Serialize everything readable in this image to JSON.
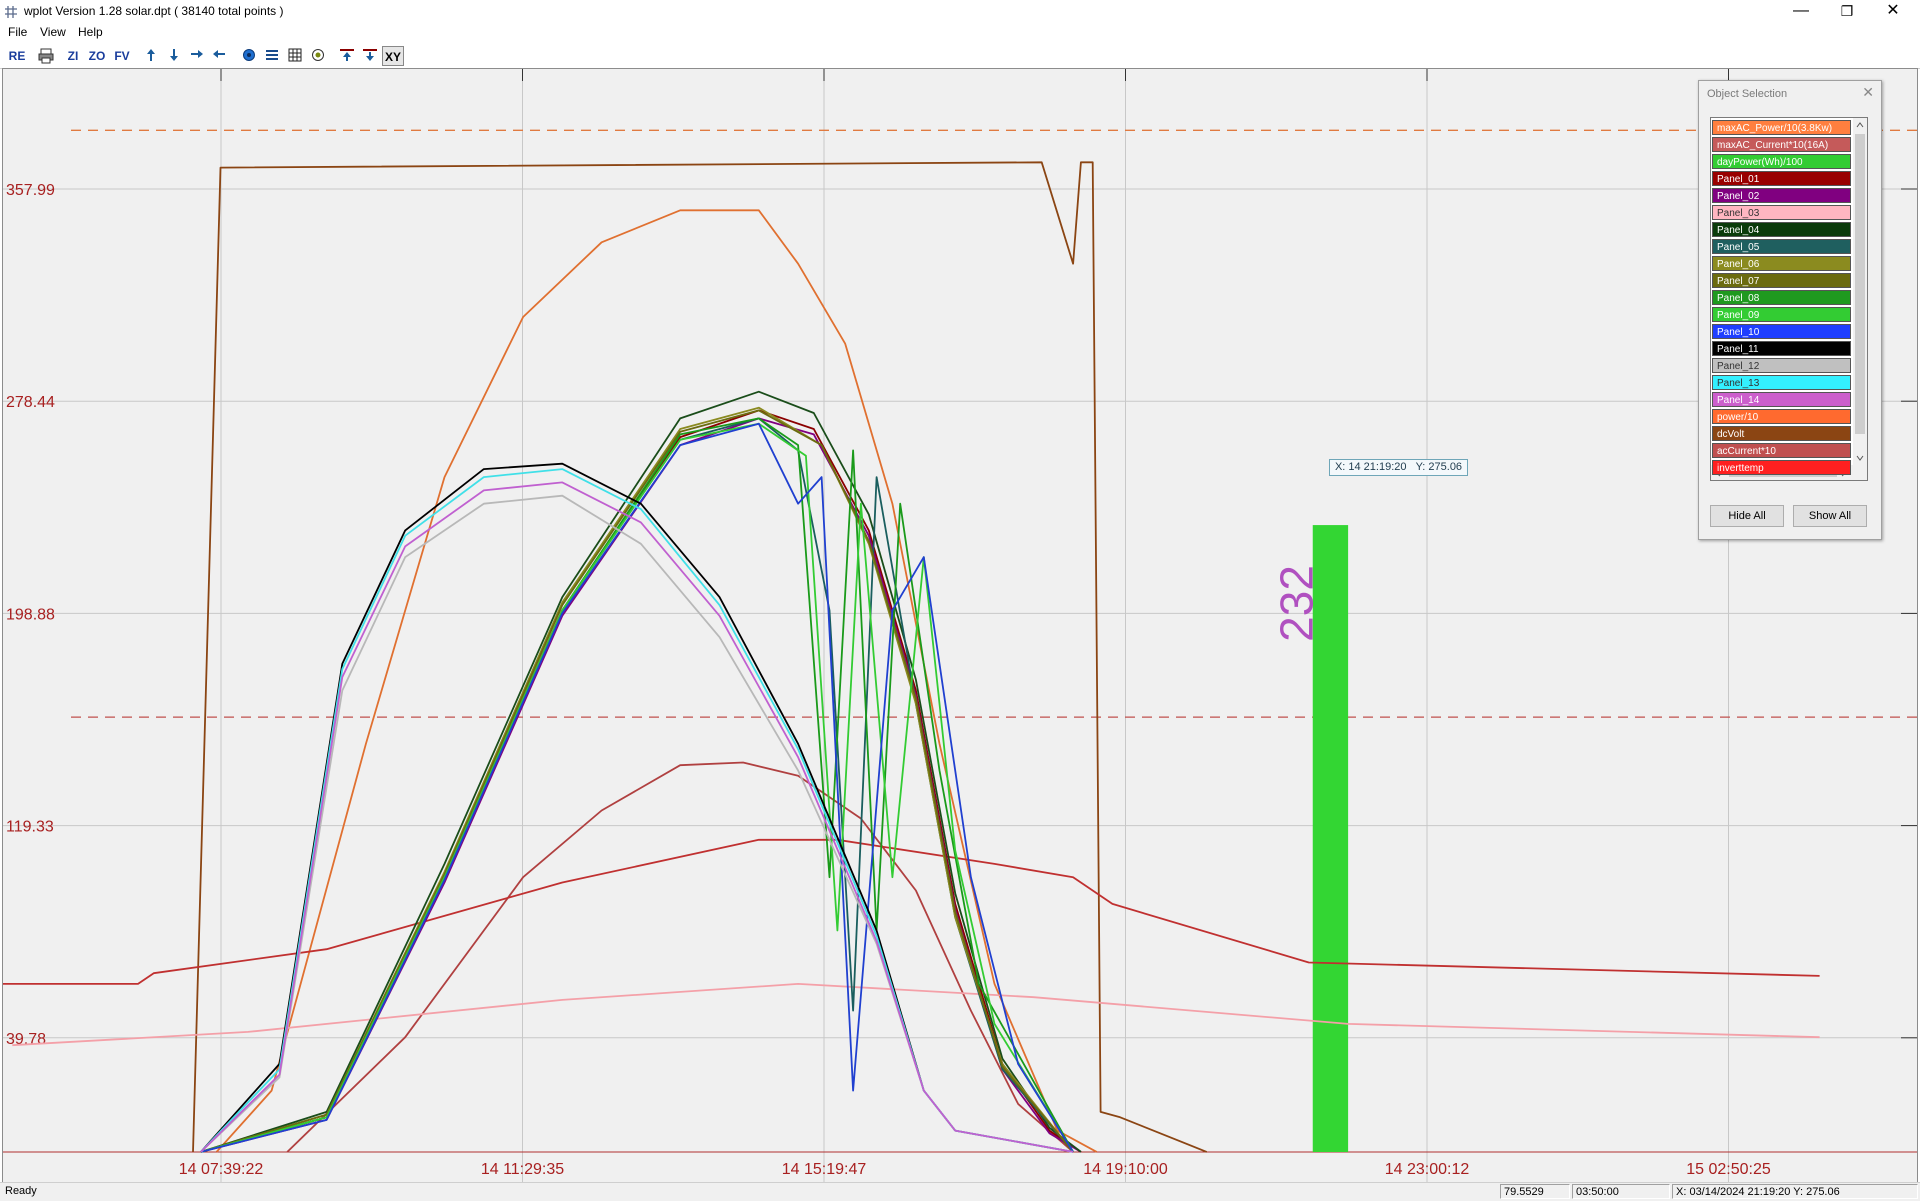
{
  "window": {
    "title": "wplot  Version 1.28  solar.dpt  ( 38140 total points )",
    "controls": {
      "minimize": "—",
      "restore": "❐",
      "close": "✕"
    }
  },
  "menu": [
    "File",
    "View",
    "Help"
  ],
  "toolbar": {
    "buttons": [
      {
        "label": "RE"
      },
      {
        "label": ""
      },
      {
        "label": "ZI"
      },
      {
        "label": "ZO"
      },
      {
        "label": "FV"
      },
      {
        "label": ""
      },
      {
        "label": ""
      },
      {
        "label": ""
      },
      {
        "label": ""
      },
      {
        "label": ""
      },
      {
        "label": ""
      },
      {
        "label": ""
      },
      {
        "label": ""
      },
      {
        "label": ""
      },
      {
        "label": ""
      },
      {
        "label": "XY"
      }
    ],
    "icons": [
      "print-icon",
      "arrow-up-icon",
      "arrow-down-icon",
      "arrow-right-icon",
      "arrow-left-icon",
      "circle-icon",
      "lines-icon",
      "grid-icon",
      "target-icon",
      "top-line-icon",
      "bottom-line-icon"
    ]
  },
  "chart_data": {
    "type": "line",
    "y_tick_labels": [
      "357.99",
      "278.44",
      "198.88",
      "119.33",
      "39.78"
    ],
    "x_tick_labels": [
      "14 07:39:22",
      "14 11:29:35",
      "14 15:19:47",
      "14 19:10:00",
      "14 23:00:12",
      "15 02:50:25"
    ],
    "ylim": [
      -3,
      397
    ],
    "grid": true,
    "reference_lines": [
      {
        "name": "maxAC_Power/10(3.8Kw)",
        "y": 380,
        "color": "#e07a40"
      },
      {
        "name": "maxAC_Current*10(16A)",
        "y": 160,
        "color": "#c0504d"
      }
    ],
    "series": [
      {
        "name": "dcVolt",
        "color": "#8b4513",
        "points": [
          [
            7.3,
            -3
          ],
          [
            7.65,
            366
          ],
          [
            18.1,
            368
          ],
          [
            18.5,
            330
          ],
          [
            18.6,
            368
          ],
          [
            18.75,
            368
          ],
          [
            18.85,
            12
          ],
          [
            19.1,
            10
          ],
          [
            20.2,
            -3
          ]
        ]
      },
      {
        "name": "power/10",
        "color": "#e07030",
        "points": [
          [
            7.6,
            -3
          ],
          [
            8.3,
            20
          ],
          [
            9.5,
            150
          ],
          [
            10.5,
            250
          ],
          [
            11.5,
            310
          ],
          [
            12.5,
            338
          ],
          [
            13.5,
            350
          ],
          [
            14.5,
            350
          ],
          [
            15.0,
            330
          ],
          [
            15.6,
            300
          ],
          [
            16.2,
            240
          ],
          [
            16.8,
            150
          ],
          [
            17.5,
            60
          ],
          [
            18.3,
            5
          ],
          [
            18.8,
            -3
          ]
        ]
      },
      {
        "name": "acCurrent*10",
        "color": "#b04040",
        "points": [
          [
            8.5,
            -3
          ],
          [
            10.0,
            40
          ],
          [
            11.5,
            100
          ],
          [
            12.5,
            125
          ],
          [
            13.5,
            142
          ],
          [
            14.3,
            143
          ],
          [
            15.0,
            138
          ],
          [
            15.8,
            122
          ],
          [
            16.5,
            95
          ],
          [
            17.2,
            50
          ],
          [
            17.8,
            15
          ],
          [
            18.5,
            -3
          ]
        ]
      },
      {
        "name": "inverttemp",
        "color": "#c03030",
        "points": [
          [
            4.2,
            60
          ],
          [
            6.6,
            60
          ],
          [
            6.8,
            64
          ],
          [
            9.0,
            73
          ],
          [
            12.0,
            98
          ],
          [
            14.5,
            114
          ],
          [
            15.5,
            114
          ],
          [
            17.5,
            105
          ],
          [
            18.5,
            100
          ],
          [
            19.0,
            90
          ],
          [
            21.5,
            68
          ],
          [
            28.0,
            63
          ]
        ]
      },
      {
        "name": "Panel_03",
        "color": "#f4a0a8",
        "points": [
          [
            5.0,
            37
          ],
          [
            8.0,
            42
          ],
          [
            12.0,
            54
          ],
          [
            15.0,
            60
          ],
          [
            18.0,
            55
          ],
          [
            22.0,
            45
          ],
          [
            28.0,
            40
          ]
        ]
      },
      {
        "name": "Panel_01",
        "color": "#8b0000",
        "points": [
          [
            7.4,
            -3
          ],
          [
            9.0,
            10
          ],
          [
            10.5,
            100
          ],
          [
            12.0,
            200
          ],
          [
            13.5,
            265
          ],
          [
            14.5,
            275
          ],
          [
            15.2,
            268
          ],
          [
            15.9,
            230
          ],
          [
            16.5,
            170
          ],
          [
            17.0,
            90
          ],
          [
            17.6,
            30
          ],
          [
            18.2,
            5
          ],
          [
            18.6,
            -3
          ]
        ]
      },
      {
        "name": "Panel_02",
        "color": "#800080",
        "points": [
          [
            7.4,
            -3
          ],
          [
            9.0,
            9
          ],
          [
            10.5,
            98
          ],
          [
            12.0,
            198
          ],
          [
            13.5,
            262
          ],
          [
            14.5,
            272
          ],
          [
            15.2,
            266
          ],
          [
            15.9,
            228
          ],
          [
            16.5,
            168
          ],
          [
            17.0,
            88
          ],
          [
            17.6,
            28
          ],
          [
            18.2,
            4
          ],
          [
            18.6,
            -3
          ]
        ]
      },
      {
        "name": "Panel_04",
        "color": "#1a4d1a",
        "points": [
          [
            7.4,
            -3
          ],
          [
            9.0,
            12
          ],
          [
            10.5,
            105
          ],
          [
            12.0,
            205
          ],
          [
            13.5,
            272
          ],
          [
            14.5,
            282
          ],
          [
            15.2,
            274
          ],
          [
            15.9,
            236
          ],
          [
            16.5,
            174
          ],
          [
            17.0,
            94
          ],
          [
            17.6,
            32
          ],
          [
            18.2,
            6
          ],
          [
            18.6,
            -3
          ]
        ]
      },
      {
        "name": "Panel_05",
        "color": "#1a5e5e",
        "points": [
          [
            7.4,
            -3
          ],
          [
            9.0,
            10
          ],
          [
            10.5,
            100
          ],
          [
            12.0,
            200
          ],
          [
            13.5,
            264
          ],
          [
            14.5,
            272
          ],
          [
            15.0,
            260
          ],
          [
            15.4,
            200
          ],
          [
            15.7,
            50
          ],
          [
            16.0,
            250
          ],
          [
            16.5,
            165
          ],
          [
            17.0,
            85
          ],
          [
            17.6,
            28
          ],
          [
            18.5,
            -3
          ]
        ]
      },
      {
        "name": "Panel_06",
        "color": "#8a8a20",
        "points": [
          [
            7.4,
            -3
          ],
          [
            9.0,
            11
          ],
          [
            10.5,
            102
          ],
          [
            12.0,
            203
          ],
          [
            13.5,
            268
          ],
          [
            14.5,
            276
          ],
          [
            15.3,
            262
          ],
          [
            15.9,
            225
          ],
          [
            16.5,
            165
          ],
          [
            17.0,
            85
          ],
          [
            17.6,
            30
          ],
          [
            18.5,
            -3
          ]
        ]
      },
      {
        "name": "Panel_07",
        "color": "#6b6b10",
        "points": [
          [
            7.4,
            -3
          ],
          [
            9.0,
            11
          ],
          [
            10.5,
            101
          ],
          [
            12.0,
            202
          ],
          [
            13.5,
            267
          ],
          [
            14.5,
            275
          ],
          [
            15.3,
            262
          ],
          [
            15.9,
            226
          ],
          [
            16.5,
            167
          ],
          [
            17.0,
            87
          ],
          [
            17.6,
            29
          ],
          [
            18.5,
            -3
          ]
        ]
      },
      {
        "name": "Panel_08",
        "color": "#1a9a1a",
        "points": [
          [
            7.4,
            -3
          ],
          [
            9.0,
            10
          ],
          [
            10.5,
            100
          ],
          [
            12.0,
            200
          ],
          [
            13.5,
            266
          ],
          [
            14.5,
            272
          ],
          [
            15.0,
            262
          ],
          [
            15.4,
            100
          ],
          [
            15.7,
            260
          ],
          [
            16.0,
            80
          ],
          [
            16.3,
            240
          ],
          [
            16.8,
            140
          ],
          [
            17.3,
            60
          ],
          [
            18.5,
            -3
          ]
        ]
      },
      {
        "name": "Panel_09",
        "color": "#33cc33",
        "points": [
          [
            7.4,
            -3
          ],
          [
            9.0,
            10
          ],
          [
            10.5,
            100
          ],
          [
            12.0,
            200
          ],
          [
            13.5,
            264
          ],
          [
            14.5,
            270
          ],
          [
            15.1,
            258
          ],
          [
            15.5,
            80
          ],
          [
            15.8,
            240
          ],
          [
            16.2,
            100
          ],
          [
            16.6,
            220
          ],
          [
            17.0,
            110
          ],
          [
            17.5,
            45
          ],
          [
            18.5,
            -3
          ]
        ]
      },
      {
        "name": "Panel_10",
        "color": "#2040d0",
        "points": [
          [
            7.4,
            -3
          ],
          [
            9.0,
            9
          ],
          [
            10.5,
            99
          ],
          [
            12.0,
            199
          ],
          [
            13.5,
            262
          ],
          [
            14.5,
            270
          ],
          [
            15.0,
            240
          ],
          [
            15.3,
            250
          ],
          [
            15.7,
            20
          ],
          [
            16.2,
            200
          ],
          [
            16.6,
            220
          ],
          [
            17.2,
            100
          ],
          [
            17.8,
            30
          ],
          [
            18.5,
            -3
          ]
        ]
      },
      {
        "name": "Panel_11",
        "color": "#000000",
        "points": [
          [
            7.4,
            -3
          ],
          [
            8.4,
            30
          ],
          [
            9.2,
            180
          ],
          [
            10.0,
            230
          ],
          [
            11.0,
            253
          ],
          [
            12.0,
            255
          ],
          [
            13.0,
            240
          ],
          [
            14.0,
            205
          ],
          [
            15.0,
            150
          ],
          [
            16.0,
            80
          ],
          [
            16.6,
            20
          ],
          [
            17.0,
            5
          ],
          [
            18.5,
            -3
          ]
        ]
      },
      {
        "name": "Panel_12",
        "color": "#b8b8b8",
        "points": [
          [
            7.4,
            -3
          ],
          [
            8.4,
            25
          ],
          [
            9.2,
            170
          ],
          [
            10.0,
            220
          ],
          [
            11.0,
            240
          ],
          [
            12.0,
            243
          ],
          [
            13.0,
            225
          ],
          [
            14.0,
            190
          ],
          [
            15.0,
            140
          ],
          [
            16.0,
            75
          ],
          [
            16.6,
            20
          ],
          [
            17.0,
            5
          ],
          [
            18.5,
            -3
          ]
        ]
      },
      {
        "name": "Panel_13",
        "color": "#40e0e8",
        "points": [
          [
            7.4,
            -3
          ],
          [
            8.4,
            28
          ],
          [
            9.2,
            178
          ],
          [
            10.0,
            228
          ],
          [
            11.0,
            250
          ],
          [
            12.0,
            253
          ],
          [
            13.0,
            238
          ],
          [
            14.0,
            202
          ],
          [
            15.0,
            148
          ],
          [
            16.0,
            78
          ],
          [
            16.6,
            20
          ],
          [
            17.0,
            5
          ],
          [
            18.5,
            -3
          ]
        ]
      },
      {
        "name": "Panel_14",
        "color": "#c060d0",
        "points": [
          [
            7.4,
            -3
          ],
          [
            8.4,
            26
          ],
          [
            9.2,
            175
          ],
          [
            10.0,
            224
          ],
          [
            11.0,
            245
          ],
          [
            12.0,
            248
          ],
          [
            13.0,
            233
          ],
          [
            14.0,
            198
          ],
          [
            15.0,
            145
          ],
          [
            16.0,
            76
          ],
          [
            16.6,
            20
          ],
          [
            17.0,
            5
          ],
          [
            18.5,
            -3
          ]
        ]
      }
    ],
    "bar": {
      "label": "232",
      "value": 232,
      "x_range": [
        21.55,
        22.0
      ],
      "color": "#33d633"
    }
  },
  "cursor_readout": {
    "x": "X: 14 21:19:20",
    "y": "Y: 275.06"
  },
  "object_selection": {
    "title": "Object Selection",
    "items": [
      {
        "label": "maxAC_Power/10(3.8Kw)",
        "color": "#ff7f3f",
        "text": "#ffffff"
      },
      {
        "label": "maxAC_Current*10(16A)",
        "color": "#c55a5a",
        "text": "#ffffff"
      },
      {
        "label": "dayPower(Wh)/100",
        "color": "#33cc33",
        "text": "#ffffff"
      },
      {
        "label": "Panel_01",
        "color": "#990000",
        "text": "#ffffff"
      },
      {
        "label": "Panel_02",
        "color": "#800080",
        "text": "#ffffff"
      },
      {
        "label": "Panel_03",
        "color": "#ffb6c1",
        "text": "#333333"
      },
      {
        "label": "Panel_04",
        "color": "#0b3b0b",
        "text": "#ffffff"
      },
      {
        "label": "Panel_05",
        "color": "#1f5f5f",
        "text": "#ffffff"
      },
      {
        "label": "Panel_06",
        "color": "#8b8b1f",
        "text": "#ffffff"
      },
      {
        "label": "Panel_07",
        "color": "#6b6b0f",
        "text": "#ffffff"
      },
      {
        "label": "Panel_08",
        "color": "#1f991f",
        "text": "#ffffff"
      },
      {
        "label": "Panel_09",
        "color": "#33cc33",
        "text": "#ffffff"
      },
      {
        "label": "Panel_10",
        "color": "#1f3fff",
        "text": "#ffffff"
      },
      {
        "label": "Panel_11",
        "color": "#000000",
        "text": "#ffffff"
      },
      {
        "label": "Panel_12",
        "color": "#c0c0c0",
        "text": "#333333"
      },
      {
        "label": "Panel_13",
        "color": "#33f0ff",
        "text": "#333333"
      },
      {
        "label": "Panel_14",
        "color": "#cc5fcc",
        "text": "#ffffff"
      },
      {
        "label": "power/10",
        "color": "#ff6a2f",
        "text": "#ffffff"
      },
      {
        "label": "dcVolt",
        "color": "#8b4513",
        "text": "#ffffff"
      },
      {
        "label": "acCurrent*10",
        "color": "#c05050",
        "text": "#ffffff"
      },
      {
        "label": "inverttemp",
        "color": "#ff2020",
        "text": "#ffffff"
      }
    ],
    "hide_all": "Hide All",
    "show_all": "Show All"
  },
  "status": {
    "ready": "Ready",
    "cell1": "79.5529",
    "cell2": "03:50:00",
    "cell3": "X: 03/14/2024 21:19:20   Y: 275.06"
  }
}
